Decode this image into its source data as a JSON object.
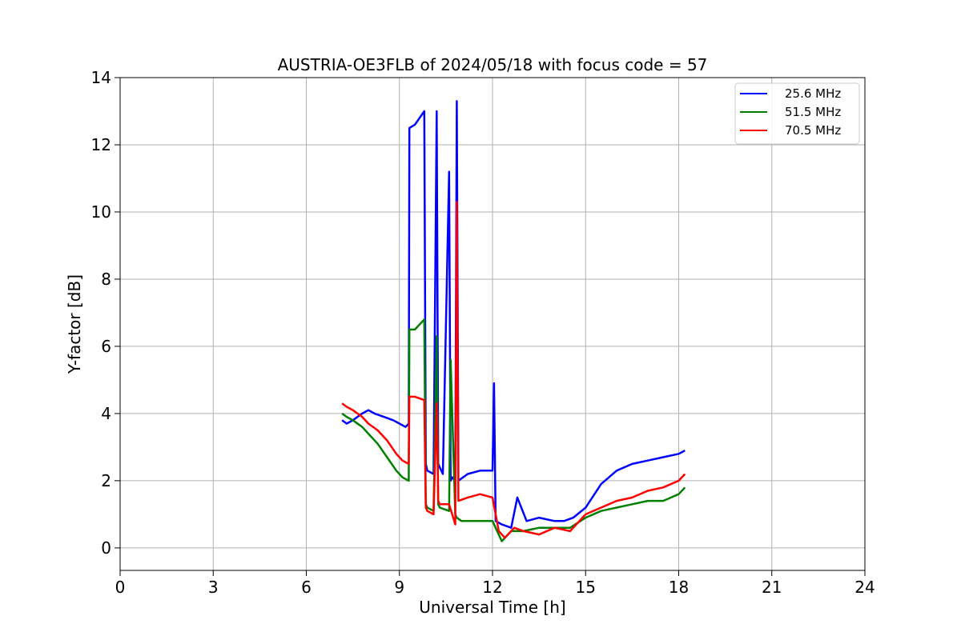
{
  "chart_data": {
    "type": "line",
    "title": "AUSTRIA-OE3FLB of 2024/05/18 with focus code = 57",
    "xlabel": "Universal Time [h]",
    "ylabel": "Y-factor [dB]",
    "xlim": [
      0,
      24
    ],
    "ylim": [
      -0.67,
      14
    ],
    "xticks": [
      0,
      3,
      6,
      9,
      12,
      15,
      18,
      21,
      24
    ],
    "yticks": [
      0,
      2,
      4,
      6,
      8,
      10,
      12,
      14
    ],
    "grid": true,
    "legend_position": "top-right",
    "series": [
      {
        "name": "25.6 MHz",
        "color": "#0000ff",
        "x": [
          7.15,
          7.3,
          7.5,
          7.8,
          8.0,
          8.2,
          8.5,
          8.8,
          9.0,
          9.2,
          9.3,
          9.32,
          9.5,
          9.8,
          9.85,
          9.9,
          10.1,
          10.2,
          10.25,
          10.3,
          10.4,
          10.6,
          10.65,
          10.7,
          10.8,
          10.85,
          10.9,
          11.2,
          11.6,
          12.0,
          12.05,
          12.1,
          12.3,
          12.6,
          12.8,
          13.1,
          13.5,
          14.0,
          14.3,
          14.6,
          15.0,
          15.5,
          16.0,
          16.5,
          17.0,
          17.5,
          18.0,
          18.2
        ],
        "y": [
          3.8,
          3.7,
          3.8,
          4.0,
          4.1,
          4.0,
          3.9,
          3.8,
          3.7,
          3.6,
          3.7,
          12.5,
          12.6,
          13.0,
          2.5,
          2.3,
          2.2,
          13.0,
          2.5,
          2.4,
          2.2,
          11.2,
          2.0,
          2.1,
          2.0,
          13.3,
          2.0,
          2.2,
          2.3,
          2.3,
          4.9,
          0.8,
          0.7,
          0.6,
          1.5,
          0.8,
          0.9,
          0.8,
          0.8,
          0.9,
          1.2,
          1.9,
          2.3,
          2.5,
          2.6,
          2.7,
          2.8,
          2.9
        ]
      },
      {
        "name": "51.5 MHz",
        "color": "#008000",
        "x": [
          7.15,
          7.3,
          7.5,
          7.8,
          8.0,
          8.3,
          8.6,
          8.9,
          9.1,
          9.3,
          9.32,
          9.5,
          9.8,
          9.85,
          9.9,
          10.1,
          10.2,
          10.25,
          10.3,
          10.6,
          10.65,
          10.8,
          10.85,
          11.0,
          11.3,
          11.7,
          12.0,
          12.3,
          12.6,
          13.0,
          13.5,
          14.0,
          14.5,
          15.0,
          15.5,
          16.0,
          16.5,
          17.0,
          17.5,
          18.0,
          18.2
        ],
        "y": [
          4.0,
          3.9,
          3.8,
          3.6,
          3.4,
          3.1,
          2.7,
          2.3,
          2.1,
          2.0,
          6.5,
          6.5,
          6.8,
          1.3,
          1.2,
          1.1,
          6.3,
          1.3,
          1.2,
          1.1,
          5.6,
          1.0,
          0.9,
          0.8,
          0.8,
          0.8,
          0.8,
          0.2,
          0.5,
          0.5,
          0.6,
          0.6,
          0.6,
          0.9,
          1.1,
          1.2,
          1.3,
          1.4,
          1.4,
          1.6,
          1.8
        ]
      },
      {
        "name": "70.5 MHz",
        "color": "#ff0000",
        "x": [
          7.15,
          7.3,
          7.5,
          7.8,
          8.0,
          8.3,
          8.6,
          8.9,
          9.1,
          9.3,
          9.32,
          9.5,
          9.8,
          9.85,
          9.9,
          10.1,
          10.2,
          10.25,
          10.3,
          10.6,
          10.8,
          10.85,
          10.9,
          11.2,
          11.6,
          12.0,
          12.2,
          12.4,
          12.7,
          13.0,
          13.5,
          14.0,
          14.5,
          15.0,
          15.5,
          16.0,
          16.5,
          17.0,
          17.5,
          18.0,
          18.2
        ],
        "y": [
          4.3,
          4.2,
          4.1,
          3.9,
          3.7,
          3.5,
          3.2,
          2.8,
          2.6,
          2.5,
          4.5,
          4.5,
          4.4,
          1.2,
          1.1,
          1.0,
          4.3,
          1.4,
          1.3,
          1.3,
          0.7,
          10.3,
          1.4,
          1.5,
          1.6,
          1.5,
          0.5,
          0.3,
          0.6,
          0.5,
          0.4,
          0.6,
          0.5,
          1.0,
          1.2,
          1.4,
          1.5,
          1.7,
          1.8,
          2.0,
          2.2
        ]
      }
    ]
  }
}
